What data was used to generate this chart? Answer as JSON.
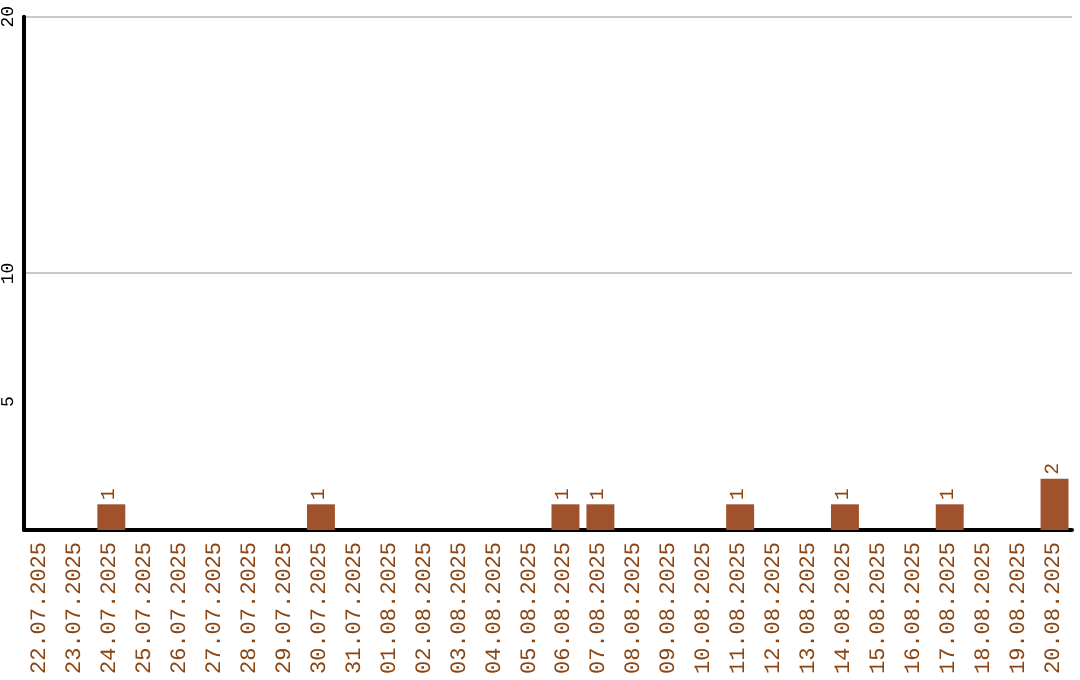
{
  "chart_data": {
    "type": "bar",
    "categories": [
      "22.07.2025",
      "23.07.2025",
      "24.07.2025",
      "25.07.2025",
      "26.07.2025",
      "27.07.2025",
      "28.07.2025",
      "29.07.2025",
      "30.07.2025",
      "31.07.2025",
      "01.08.2025",
      "02.08.2025",
      "03.08.2025",
      "04.08.2025",
      "05.08.2025",
      "06.08.2025",
      "07.08.2025",
      "08.08.2025",
      "09.08.2025",
      "10.08.2025",
      "11.08.2025",
      "12.08.2025",
      "13.08.2025",
      "14.08.2025",
      "15.08.2025",
      "16.08.2025",
      "17.08.2025",
      "18.08.2025",
      "19.08.2025",
      "20.08.2025"
    ],
    "values": [
      0,
      0,
      1,
      0,
      0,
      0,
      0,
      0,
      1,
      0,
      0,
      0,
      0,
      0,
      0,
      1,
      1,
      0,
      0,
      0,
      1,
      0,
      0,
      1,
      0,
      0,
      1,
      0,
      0,
      2
    ],
    "value_labels": [
      null,
      null,
      "1",
      null,
      null,
      null,
      null,
      null,
      "1",
      null,
      null,
      null,
      null,
      null,
      null,
      "1",
      "1",
      null,
      null,
      null,
      "1",
      null,
      null,
      "1",
      null,
      null,
      "1",
      null,
      null,
      "2"
    ],
    "color": "#a0522d",
    "ylim": [
      0,
      20
    ],
    "yticks": [
      5,
      10,
      20
    ],
    "grid": "y"
  }
}
